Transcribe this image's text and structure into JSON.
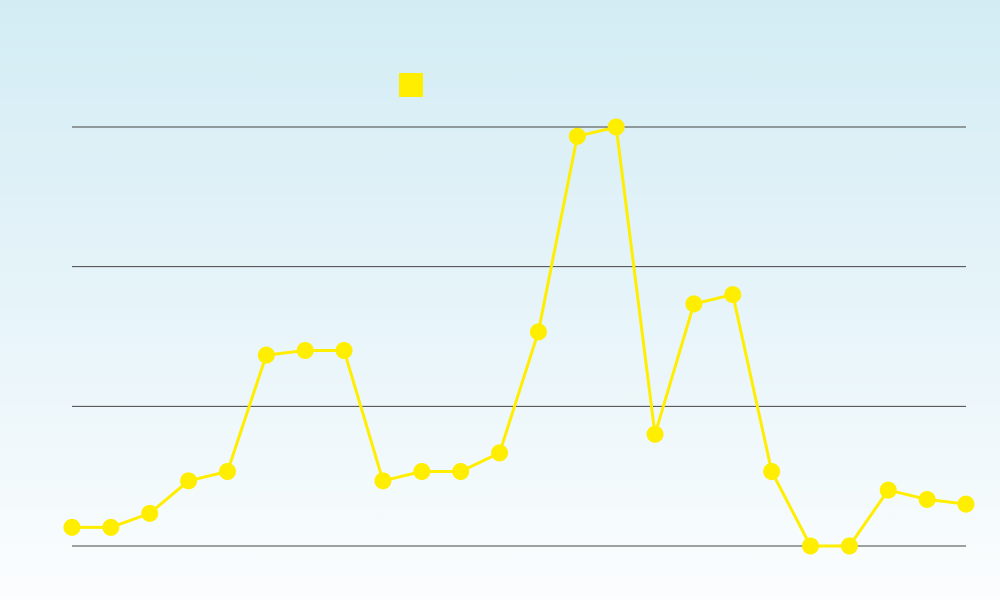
{
  "chart_data": {
    "type": "line",
    "title": "",
    "xlabel": "",
    "ylabel": "",
    "ylim": [
      0,
      90
    ],
    "gridlines": [
      0,
      30,
      60,
      90
    ],
    "grid": true,
    "legend_placement": "top-center",
    "series": [
      {
        "color": "#ffee00",
        "values": [
          4,
          4,
          7,
          14,
          16,
          41,
          42,
          42,
          14,
          16,
          16,
          20,
          46,
          88,
          90,
          24,
          52,
          54,
          16,
          0,
          0,
          12,
          10,
          9
        ]
      }
    ]
  }
}
